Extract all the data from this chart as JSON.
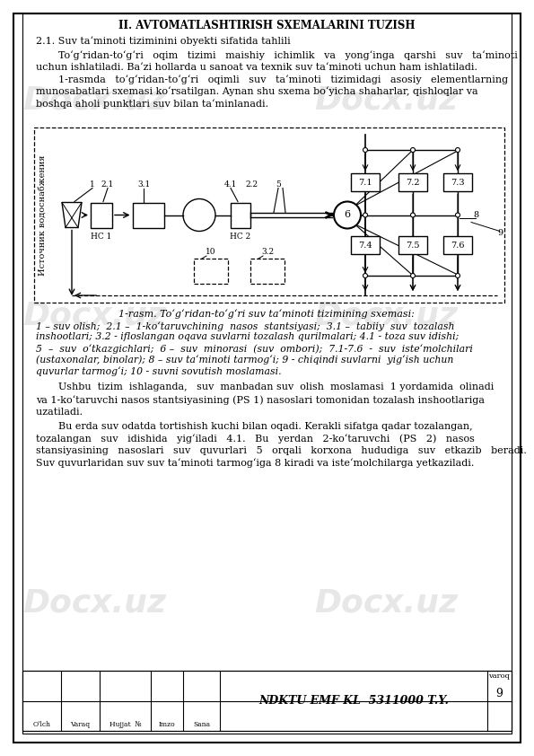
{
  "page_width": 5.95,
  "page_height": 8.42,
  "title": "II. AVTOMATLASHTIRISH SXEMALARINI TUZISH",
  "subtitle": "2.1. Suv ta‘minoti tiziminini obyekti sifatida tahlili",
  "p1l1": "To‘g‘ridan-to‘g‘ri   oqim   tizimi   maishiy   ichimlik   va   yong‘inga   qarshi   suv   ta‘minoti",
  "p1l2": "uchun ishlatiladi. Ba‘zi hollarda u sanoat va texnik suv ta‘minoti uchun ham ishlatiladi.",
  "p2l1": "1-rasmda   to‘g‘ridan-to‘g‘ri   oqimli   suv   ta‘minoti   tizimidagi   asosiy   elementlarning",
  "p2l2": "munosabatlari sxemasi ko‘rsatilgan. Aynan shu sxema bo‘yicha shaharlar, qishloqlar va",
  "p2l3": "boshqa aholi punktlari suv bilan ta‘minlanadi.",
  "diagram_caption": "1-rasm. To‘g‘ridan-to‘g‘ri suv ta‘minoti tizimining sxemasi:",
  "cap2l1": "1 – suv olish;  2.1 –  1-ko‘taruvchining  nasos  stantsiyasi;  3.1 –  tabiiy  suv  tozalash",
  "cap2l2": "inshootlari; 3.2 - ifloslangan oqava suvlarni tozalash qurilmalari; 4.1 - toza suv idishi;",
  "cap2l3": "5  –  suv  o‘tkazgichlari;  6 –  suv  minorasi  (suv  ombori);  7.1-7.6  -  suv  iste‘molchilari",
  "cap2l4": "(ustaxonalar, binolar); 8 – suv ta‘minoti tarmog‘i; 9 - chiqindi suvlarni  yig‘ish uchun",
  "cap2l5": "quvurlar tarmog‘i; 10 - suvni sovutish moslamasi.",
  "p3l1": "Ushbu  tizim  ishlaganda,   suv  manbadan suv  olish  moslamasi  1 yordamida  olinadi",
  "p3l2": "va 1-ko‘taruvchi nasos stantsiyasining (PS 1) nasoslari tomonidan tozalash inshootlariga",
  "p3l3": "uzatiladi. ",
  "p4l1": "Bu erda suv odatda tortishish kuchi bilan oqadi. Kerakli sifatga qadar tozalangan,",
  "p4l2": "tozalangan   suv   idishida   yig‘iladi   4.1.   Bu   yerdan   2-ko‘taruvchi   (PS   2)   nasos",
  "p4l3": "stansiyasining   nasoslari   suv   quvurlari   5   orqali   korxona   hududiga   suv   etkazib   beradi.",
  "p4l4": "Suv quvurlaridan suv suv ta‘minoti tarmog‘iga 8 kiradi va iste‘molchilarga yetkaziladi.",
  "footer_center": "NDKTU EMF KL  5311000 T.Y.",
  "footer_varoq": "varoq",
  "footer_page": "9",
  "footer_col1": "O‘lch",
  "footer_col2": "Varaq",
  "footer_col3": "Hujjat  №",
  "footer_col4": "Imzo",
  "footer_col5": "Sana",
  "watermark": "Docx.uz",
  "diag_vertical_text": "Источник водоснабжения",
  "hc1_label": "НС 1",
  "hc2_label": "НС 2"
}
